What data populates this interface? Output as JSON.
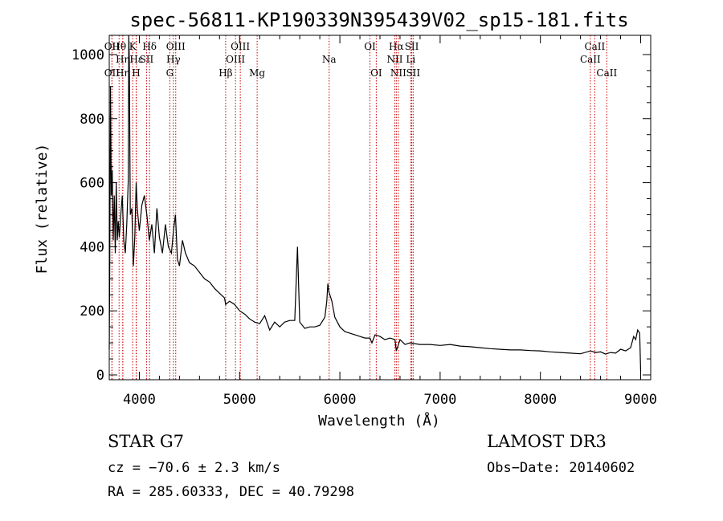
{
  "chart_data": {
    "type": "line",
    "title": "spec-56811-KP190339N395439V02_sp15-181.fits",
    "xlabel": "Wavelength (Å)",
    "ylabel": "Flux (relative)",
    "xlim": [
      3700,
      9100
    ],
    "ylim": [
      -15,
      1060
    ],
    "xticks": [
      4000,
      5000,
      6000,
      7000,
      8000,
      9000
    ],
    "yticks": [
      0,
      200,
      400,
      600,
      800,
      1000
    ],
    "grid": false,
    "line_color": "#000000",
    "marker_color": "#cc0000",
    "series": [
      {
        "name": "flux",
        "x": [
          3700,
          3705,
          3712,
          3720,
          3730,
          3740,
          3750,
          3760,
          3770,
          3780,
          3790,
          3800,
          3815,
          3830,
          3845,
          3860,
          3875,
          3890,
          3895,
          3900,
          3910,
          3925,
          3940,
          3955,
          3968,
          3980,
          4000,
          4025,
          4050,
          4075,
          4100,
          4125,
          4150,
          4175,
          4200,
          4230,
          4260,
          4290,
          4320,
          4340,
          4360,
          4380,
          4400,
          4430,
          4460,
          4500,
          4550,
          4600,
          4650,
          4700,
          4750,
          4800,
          4850,
          4861,
          4900,
          4950,
          5000,
          5050,
          5100,
          5150,
          5200,
          5250,
          5300,
          5350,
          5400,
          5450,
          5500,
          5550,
          5577,
          5600,
          5650,
          5700,
          5750,
          5800,
          5850,
          5870,
          5880,
          5890,
          5900,
          5920,
          5950,
          6000,
          6050,
          6100,
          6150,
          6200,
          6250,
          6300,
          6320,
          6350,
          6400,
          6450,
          6500,
          6550,
          6563,
          6600,
          6650,
          6700,
          6800,
          6900,
          7000,
          7100,
          7200,
          7300,
          7400,
          7500,
          7600,
          7700,
          7800,
          7900,
          8000,
          8100,
          8200,
          8300,
          8400,
          8500,
          8550,
          8600,
          8650,
          8700,
          8750,
          8800,
          8850,
          8900,
          8930,
          8950,
          8970,
          8990,
          9000
        ],
        "y": [
          80,
          330,
          900,
          560,
          640,
          420,
          560,
          380,
          600,
          420,
          480,
          430,
          500,
          560,
          420,
          380,
          470,
          610,
          1060,
          980,
          500,
          520,
          340,
          430,
          600,
          520,
          450,
          530,
          560,
          500,
          420,
          470,
          380,
          520,
          430,
          380,
          470,
          400,
          380,
          450,
          500,
          360,
          340,
          420,
          380,
          350,
          340,
          320,
          300,
          290,
          270,
          255,
          240,
          220,
          230,
          220,
          200,
          190,
          175,
          165,
          160,
          185,
          140,
          165,
          150,
          165,
          170,
          170,
          400,
          165,
          145,
          150,
          150,
          155,
          180,
          230,
          285,
          260,
          250,
          230,
          180,
          150,
          135,
          130,
          125,
          120,
          115,
          115,
          100,
          125,
          120,
          110,
          115,
          110,
          75,
          110,
          95,
          100,
          95,
          95,
          92,
          95,
          90,
          88,
          85,
          82,
          80,
          78,
          78,
          76,
          75,
          72,
          70,
          68,
          66,
          75,
          70,
          72,
          65,
          70,
          68,
          80,
          75,
          85,
          120,
          110,
          140,
          130,
          10
        ]
      }
    ],
    "line_markers": [
      {
        "label": "Hθ",
        "x": 3798,
        "row": 1
      },
      {
        "label": "OII",
        "x": 3727,
        "row": 1
      },
      {
        "label": "Hη",
        "x": 3835,
        "row": 2
      },
      {
        "label": "K",
        "x": 3934,
        "row": 1
      },
      {
        "label": "Hδ",
        "x": 4102,
        "row": 1
      },
      {
        "label": "Hε",
        "x": 3970,
        "row": 2
      },
      {
        "label": "SII",
        "x": 4072,
        "row": 2
      },
      {
        "label": "OIII",
        "x": 4363,
        "row": 1
      },
      {
        "label": "Hγ",
        "x": 4340,
        "row": 2
      },
      {
        "label": "OIII",
        "x": 5007,
        "row": 1
      },
      {
        "label": "OIII",
        "x": 4959,
        "row": 2
      },
      {
        "label": "OI",
        "x": 6300,
        "row": 1
      },
      {
        "label": "Hα",
        "x": 6563,
        "row": 1
      },
      {
        "label": "SII",
        "x": 6717,
        "row": 1
      },
      {
        "label": "NII",
        "x": 6548,
        "row": 2
      },
      {
        "label": "Li",
        "x": 6707,
        "row": 2
      },
      {
        "label": "CaII",
        "x": 8542,
        "row": 1
      },
      {
        "label": "CaII",
        "x": 8498,
        "row": 2
      },
      {
        "label": "OII",
        "x": 3727,
        "row": 3
      },
      {
        "label": "Hη",
        "x": 3835,
        "row": 3
      },
      {
        "label": "H",
        "x": 3968,
        "row": 3
      },
      {
        "label": "G",
        "x": 4304,
        "row": 3
      },
      {
        "label": "Hβ",
        "x": 4861,
        "row": 3
      },
      {
        "label": "Mg",
        "x": 5175,
        "row": 3
      },
      {
        "label": "Na",
        "x": 5893,
        "row": 2
      },
      {
        "label": "OI",
        "x": 6363,
        "row": 3
      },
      {
        "label": "NII",
        "x": 6583,
        "row": 3
      },
      {
        "label": "SII",
        "x": 6731,
        "row": 3
      },
      {
        "label": "CaII",
        "x": 8662,
        "row": 3
      }
    ]
  },
  "info": {
    "class_line": "STAR    G7",
    "survey": "LAMOST DR3",
    "redshift": "cz = −70.6 ± 2.3 km/s",
    "obs_date": "Obs−Date: 20140602",
    "coords": "RA = 285.60333, DEC =  40.79298"
  }
}
